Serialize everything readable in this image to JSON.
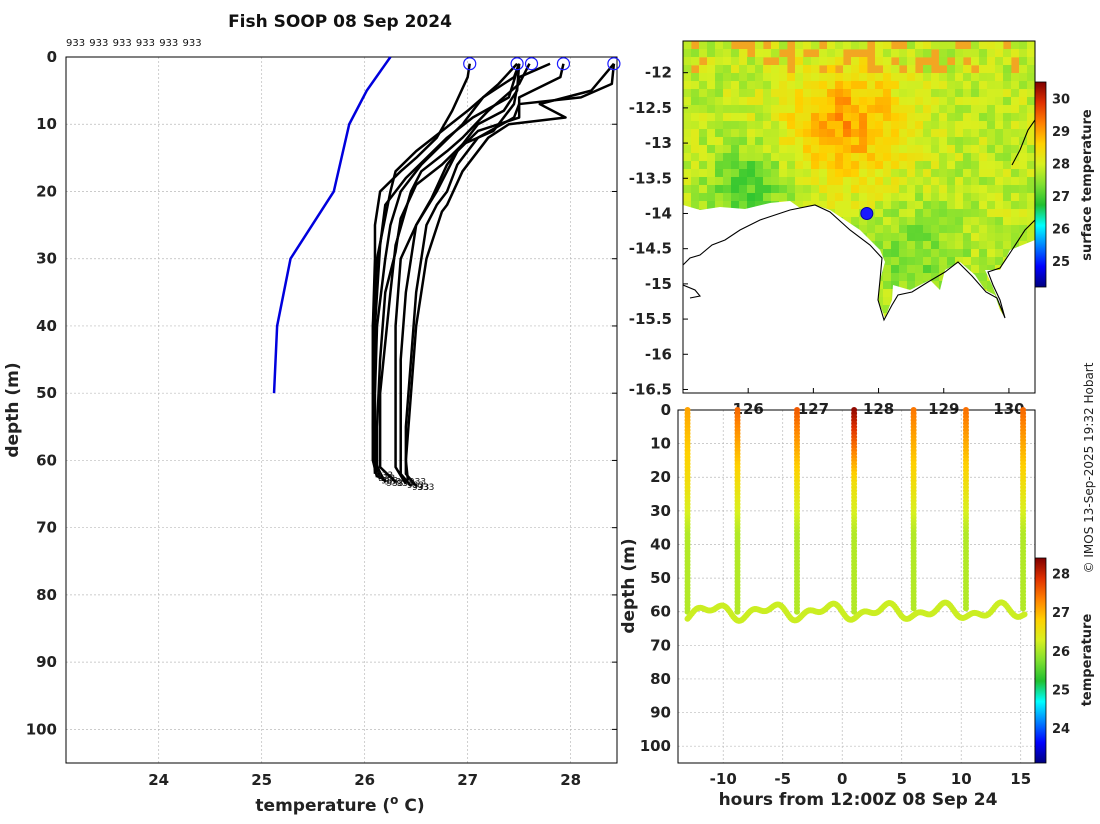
{
  "chart_data": [
    {
      "type": "line",
      "name": "depth-profiles",
      "title": "Fish SOOP 08 Sep 2024",
      "xlabel": "temperature (",
      "xlabel_sup": "o",
      "xlabel_end": " C)",
      "ylabel": "depth (m)",
      "xlim": [
        23.1,
        28.45
      ],
      "ylim": [
        0,
        105
      ],
      "xticks": [
        24,
        25,
        26,
        27,
        28
      ],
      "yticks": [
        0,
        10,
        20,
        30,
        40,
        50,
        60,
        70,
        80,
        90,
        100
      ],
      "id_labels": [
        "933",
        "933",
        "933",
        "933",
        "933",
        "933"
      ],
      "end_label": "933",
      "surface_markers": [
        [
          27.02,
          1
        ],
        [
          27.48,
          1
        ],
        [
          27.62,
          1
        ],
        [
          27.93,
          1
        ],
        [
          28.42,
          1
        ]
      ],
      "climatology": {
        "name": "climatology",
        "color": "#0000dd",
        "points": [
          [
            26.25,
            0
          ],
          [
            26.02,
            5
          ],
          [
            25.85,
            10
          ],
          [
            25.7,
            20
          ],
          [
            25.28,
            30
          ],
          [
            25.15,
            40
          ],
          [
            25.12,
            50
          ]
        ]
      },
      "series": [
        {
          "name": "profile-1",
          "points": [
            [
              27.02,
              1
            ],
            [
              27.0,
              3
            ],
            [
              26.85,
              8
            ],
            [
              26.7,
              12
            ],
            [
              26.5,
              15
            ],
            [
              26.35,
              17
            ],
            [
              26.15,
              20
            ],
            [
              26.1,
              25
            ],
            [
              26.1,
              30
            ],
            [
              26.08,
              40
            ],
            [
              26.08,
              50
            ],
            [
              26.08,
              60
            ],
            [
              26.12,
              62.5
            ]
          ]
        },
        {
          "name": "profile-2",
          "points": [
            [
              27.48,
              1
            ],
            [
              27.3,
              4
            ],
            [
              27.0,
              8
            ],
            [
              26.75,
              11
            ],
            [
              26.5,
              14
            ],
            [
              26.3,
              17
            ],
            [
              26.25,
              20
            ],
            [
              26.12,
              30
            ],
            [
              26.08,
              40
            ],
            [
              26.08,
              50
            ],
            [
              26.08,
              60
            ],
            [
              26.15,
              62.8
            ]
          ]
        },
        {
          "name": "profile-3",
          "points": [
            [
              27.5,
              1
            ],
            [
              27.45,
              3
            ],
            [
              27.15,
              6
            ],
            [
              26.95,
              10
            ],
            [
              26.75,
              13
            ],
            [
              26.55,
              16
            ],
            [
              26.35,
              20
            ],
            [
              26.25,
              25
            ],
            [
              26.2,
              30
            ],
            [
              26.12,
              40
            ],
            [
              26.1,
              50
            ],
            [
              26.1,
              60
            ],
            [
              26.18,
              63
            ]
          ]
        },
        {
          "name": "profile-4",
          "points": [
            [
              27.5,
              1
            ],
            [
              27.48,
              5
            ],
            [
              27.35,
              8
            ],
            [
              27.1,
              10
            ],
            [
              26.95,
              13
            ],
            [
              26.75,
              16
            ],
            [
              26.5,
              19
            ],
            [
              26.35,
              24
            ],
            [
              26.3,
              29
            ],
            [
              26.2,
              35
            ],
            [
              26.15,
              45
            ],
            [
              26.12,
              55
            ],
            [
              26.12,
              61
            ],
            [
              26.2,
              63.2
            ]
          ]
        },
        {
          "name": "profile-5",
          "points": [
            [
              27.6,
              1
            ],
            [
              27.5,
              4
            ],
            [
              27.2,
              8
            ],
            [
              26.95,
              12
            ],
            [
              26.8,
              14
            ],
            [
              26.55,
              17
            ],
            [
              26.45,
              20
            ],
            [
              26.3,
              28
            ],
            [
              26.25,
              35
            ],
            [
              26.15,
              50
            ],
            [
              26.15,
              61
            ],
            [
              26.3,
              63.2
            ]
          ]
        },
        {
          "name": "profile-6",
          "points": [
            [
              27.8,
              1
            ],
            [
              27.5,
              3
            ],
            [
              27.45,
              7
            ],
            [
              27.25,
              11
            ],
            [
              26.95,
              13
            ],
            [
              26.8,
              16
            ],
            [
              26.65,
              21
            ],
            [
              26.5,
              25
            ],
            [
              26.35,
              30
            ],
            [
              26.3,
              40
            ],
            [
              26.3,
              50
            ],
            [
              26.3,
              61
            ],
            [
              26.4,
              63.5
            ]
          ]
        },
        {
          "name": "profile-7",
          "points": [
            [
              27.93,
              1
            ],
            [
              27.9,
              3
            ],
            [
              27.5,
              6
            ],
            [
              27.5,
              9
            ],
            [
              27.1,
              11
            ],
            [
              26.9,
              14
            ],
            [
              26.8,
              17
            ],
            [
              26.7,
              20
            ],
            [
              26.5,
              25
            ],
            [
              26.4,
              35
            ],
            [
              26.35,
              45
            ],
            [
              26.35,
              55
            ],
            [
              26.35,
              62
            ],
            [
              26.45,
              63.8
            ]
          ]
        },
        {
          "name": "profile-8",
          "points": [
            [
              28.42,
              1
            ],
            [
              28.4,
              4
            ],
            [
              28.1,
              6
            ],
            [
              27.5,
              7
            ],
            [
              27.45,
              9
            ],
            [
              27.1,
              12
            ],
            [
              26.9,
              16
            ],
            [
              26.8,
              20
            ],
            [
              26.7,
              22
            ],
            [
              26.6,
              25
            ],
            [
              26.5,
              35
            ],
            [
              26.45,
              45
            ],
            [
              26.4,
              55
            ],
            [
              26.4,
              62
            ],
            [
              26.5,
              63.8
            ]
          ]
        },
        {
          "name": "profile-9",
          "points": [
            [
              28.42,
              1
            ],
            [
              28.2,
              5
            ],
            [
              27.7,
              7
            ],
            [
              27.95,
              9
            ],
            [
              27.4,
              10
            ],
            [
              27.2,
              12
            ],
            [
              26.95,
              17
            ],
            [
              26.8,
              22
            ],
            [
              26.75,
              23
            ],
            [
              26.6,
              30
            ],
            [
              26.5,
              40
            ],
            [
              26.45,
              50
            ],
            [
              26.4,
              60
            ],
            [
              26.42,
              63
            ]
          ]
        },
        {
          "name": "profile-10",
          "points": [
            [
              27.5,
              1
            ],
            [
              27.4,
              6
            ],
            [
              27.05,
              9
            ],
            [
              26.8,
              12
            ],
            [
              26.6,
              15
            ],
            [
              26.4,
              18
            ],
            [
              26.2,
              22
            ],
            [
              26.15,
              28
            ],
            [
              26.1,
              40
            ],
            [
              26.08,
              55
            ],
            [
              26.1,
              62
            ]
          ]
        }
      ]
    },
    {
      "type": "heatmap",
      "name": "surface-temperature-map",
      "ylim": [
        -16.55,
        -11.55
      ],
      "xlim": [
        125.0,
        130.4
      ],
      "yticks": [
        -12,
        -12.5,
        -13,
        -13.5,
        -14,
        -14.5,
        -15,
        -15.5,
        -16,
        -16.5
      ],
      "ytick_labels": [
        "-12",
        "-12.5",
        "-13",
        "-13.5",
        "-14",
        "-14.5",
        "-15",
        "-15.5",
        "-16",
        "-16.5"
      ],
      "xticks": [
        126,
        127,
        128,
        129,
        130
      ],
      "xtick_labels": [
        "126",
        "127",
        "128",
        "129",
        "130"
      ],
      "colorbar_label": "surface temperature",
      "colorbar_ticks": [
        25,
        26,
        27,
        28,
        29,
        30
      ],
      "colorbar_range": [
        24.2,
        30.5
      ],
      "track_marker": [
        127.82,
        -14.0
      ],
      "colormap": [
        "#00007f",
        "#0000ff",
        "#0080ff",
        "#00ffff",
        "#20c030",
        "#80e030",
        "#d8f020",
        "#ffd000",
        "#ff8000",
        "#e03000",
        "#7f0000"
      ]
    },
    {
      "type": "scatter",
      "name": "depth-time-section",
      "xlabel": "hours from 12:00Z 08 Sep 24",
      "ylabel": "depth (m)",
      "xlim": [
        -13.8,
        16.2
      ],
      "ylim": [
        0,
        105
      ],
      "xticks": [
        -10,
        -5,
        0,
        5,
        10,
        15
      ],
      "yticks": [
        0,
        10,
        20,
        30,
        40,
        50,
        60,
        70,
        80,
        90,
        100
      ],
      "colorbar_label": "temperature",
      "colorbar_ticks": [
        24,
        25,
        26,
        27,
        28
      ],
      "colorbar_range": [
        23.1,
        28.4
      ],
      "profile_times": [
        -13.0,
        -8.8,
        -3.8,
        1.0,
        6.0,
        10.4,
        15.2
      ],
      "surface_temps": [
        27.1,
        27.5,
        27.6,
        28.3,
        27.4,
        27.45,
        27.5
      ]
    }
  ],
  "side_note": "© IMOS 13-Sep-2025 19:32 Hobart"
}
